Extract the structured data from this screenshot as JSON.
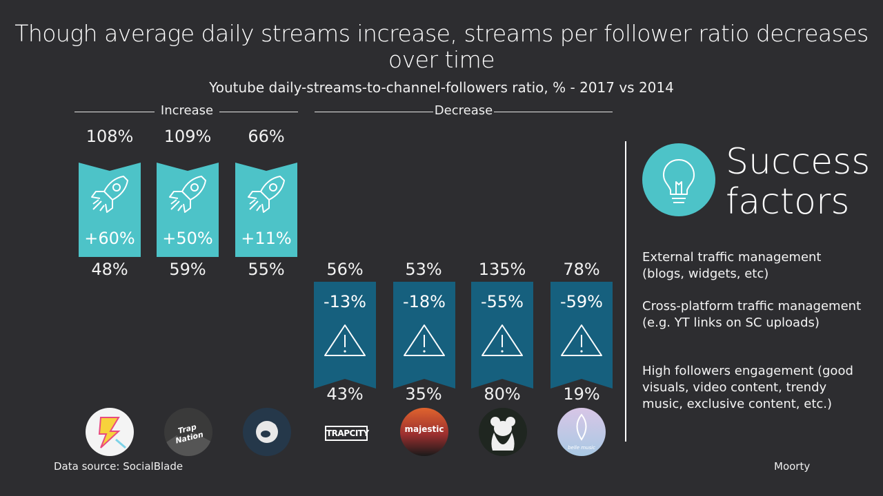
{
  "title": "Though average daily streams increase, streams per follower ratio decreases over time",
  "subtitle": "Youtube daily-streams-to-channel-followers ratio, % - 2017 vs 2014",
  "groups": {
    "increase": "Increase",
    "decrease": "Decrease"
  },
  "chart_data": {
    "type": "table",
    "title": "Youtube daily-streams-to-channel-followers ratio, % - 2017 vs 2014",
    "increase": [
      {
        "top": "108%",
        "change": "+60%",
        "bottom": "48%",
        "top_value": 108,
        "bottom_value": 48,
        "change_value": 60
      },
      {
        "top": "109%",
        "change": "+50%",
        "bottom": "59%",
        "top_value": 109,
        "bottom_value": 59,
        "change_value": 50
      },
      {
        "top": "66%",
        "change": "+11%",
        "bottom": "55%",
        "top_value": 66,
        "bottom_value": 55,
        "change_value": 11
      }
    ],
    "decrease": [
      {
        "top": "56%",
        "change": "-13%",
        "bottom": "43%",
        "top_value": 56,
        "bottom_value": 43,
        "change_value": -13
      },
      {
        "top": "53%",
        "change": "-18%",
        "bottom": "35%",
        "top_value": 53,
        "bottom_value": 35,
        "change_value": -18
      },
      {
        "top": "135%",
        "change": "-55%",
        "bottom": "80%",
        "top_value": 135,
        "bottom_value": 80,
        "change_value": -55
      },
      {
        "top": "78%",
        "change": "-59%",
        "bottom": "19%",
        "top_value": 78,
        "bottom_value": 19,
        "change_value": -59
      }
    ]
  },
  "success": {
    "title_line1": "Success",
    "title_line2": "factors",
    "factors": [
      "External traffic management (blogs, widgets, etc)",
      "Cross-platform traffic management (e.g. YT links on SC uploads)",
      "High followers engagement (good visuals, video content, trendy music, exclusive content, etc.)"
    ]
  },
  "logos": {
    "trap_nation": "Trap Nation",
    "trapcity": "TRAPCITY",
    "majestic": "majestic",
    "belle": "belle music"
  },
  "footer": {
    "source": "Data source: SocialBlade",
    "brand": "Moorty"
  },
  "colors": {
    "increase": "#4dc3c8",
    "decrease": "#16607e",
    "background": "#2d2d30"
  }
}
